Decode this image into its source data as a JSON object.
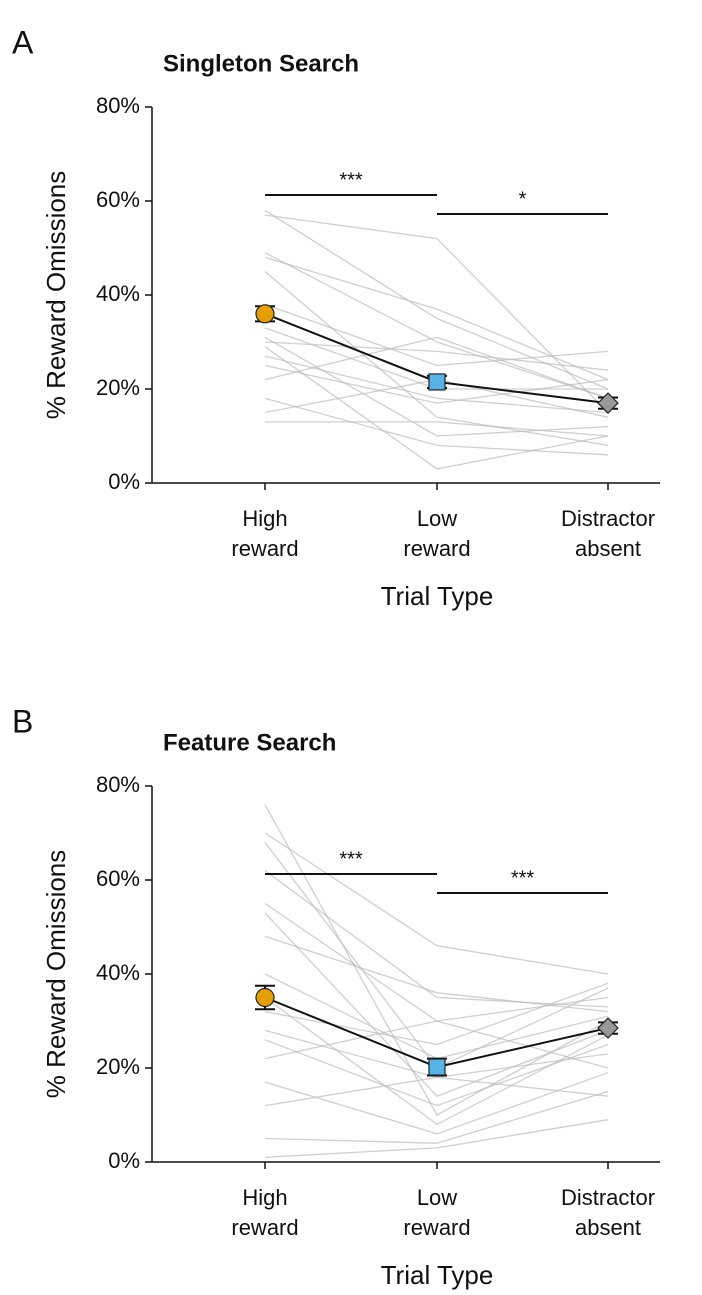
{
  "chart_data": [
    {
      "type": "line",
      "panel": "A",
      "title": "Singleton Search",
      "categories": [
        "High reward",
        "Low reward",
        "Distractor absent"
      ],
      "xlabel": "Trial Type",
      "ylabel": "% Reward Omissions",
      "ylim": [
        0,
        80
      ],
      "yticks": [
        {
          "value": 0,
          "label": "0%"
        },
        {
          "value": 20,
          "label": "20%"
        },
        {
          "value": 40,
          "label": "40%"
        },
        {
          "value": 60,
          "label": "60%"
        },
        {
          "value": 80,
          "label": "80%"
        }
      ],
      "subject_color": "#bbbbbb",
      "subjects": [
        [
          58,
          35,
          20
        ],
        [
          57,
          52,
          15
        ],
        [
          49,
          30,
          18
        ],
        [
          48,
          37,
          22
        ],
        [
          45,
          14,
          8
        ],
        [
          38,
          25,
          28
        ],
        [
          33,
          20,
          20
        ],
        [
          31,
          10,
          12
        ],
        [
          30,
          28,
          24
        ],
        [
          29,
          3,
          10
        ],
        [
          27,
          18,
          15
        ],
        [
          25,
          17,
          22
        ],
        [
          22,
          31,
          18
        ],
        [
          18,
          8,
          6
        ],
        [
          15,
          22,
          14
        ],
        [
          13,
          13,
          10
        ]
      ],
      "mean": {
        "values": [
          36,
          21.5,
          17
        ],
        "errors": [
          1.6,
          1.3,
          1.2
        ],
        "colors": [
          "#e69f00",
          "#56b4e9",
          "#999999"
        ],
        "markers": [
          "circle",
          "square",
          "diamond"
        ]
      },
      "annotations": [
        {
          "text": "***",
          "between": [
            "High reward",
            "Low reward"
          ]
        },
        {
          "text": "*",
          "between": [
            "Low reward",
            "Distractor absent"
          ]
        }
      ]
    },
    {
      "type": "line",
      "panel": "B",
      "title": "Feature Search",
      "categories": [
        "High reward",
        "Low reward",
        "Distractor absent"
      ],
      "xlabel": "Trial Type",
      "ylabel": "% Reward Omissions",
      "ylim": [
        0,
        80
      ],
      "yticks": [
        {
          "value": 0,
          "label": "0%"
        },
        {
          "value": 20,
          "label": "20%"
        },
        {
          "value": 40,
          "label": "40%"
        },
        {
          "value": 60,
          "label": "60%"
        },
        {
          "value": 80,
          "label": "80%"
        }
      ],
      "subject_color": "#bbbbbb",
      "subjects": [
        [
          76,
          10,
          30
        ],
        [
          70,
          46,
          40
        ],
        [
          68,
          20,
          37
        ],
        [
          62,
          35,
          33
        ],
        [
          55,
          30,
          35
        ],
        [
          53,
          14,
          28
        ],
        [
          48,
          36,
          32
        ],
        [
          40,
          22,
          31
        ],
        [
          35,
          8,
          27
        ],
        [
          32,
          25,
          38
        ],
        [
          28,
          18,
          23
        ],
        [
          26,
          12,
          25
        ],
        [
          22,
          30,
          20
        ],
        [
          17,
          6,
          19
        ],
        [
          12,
          18,
          14
        ],
        [
          5,
          4,
          15
        ],
        [
          1,
          3,
          9
        ]
      ],
      "mean": {
        "values": [
          35,
          20.2,
          28.5
        ],
        "errors": [
          2.5,
          1.8,
          1.2
        ],
        "colors": [
          "#e69f00",
          "#56b4e9",
          "#999999"
        ],
        "markers": [
          "circle",
          "square",
          "diamond"
        ]
      },
      "annotations": [
        {
          "text": "***",
          "between": [
            "High reward",
            "Low reward"
          ]
        },
        {
          "text": "***",
          "between": [
            "Low reward",
            "Distractor absent"
          ]
        }
      ]
    }
  ]
}
